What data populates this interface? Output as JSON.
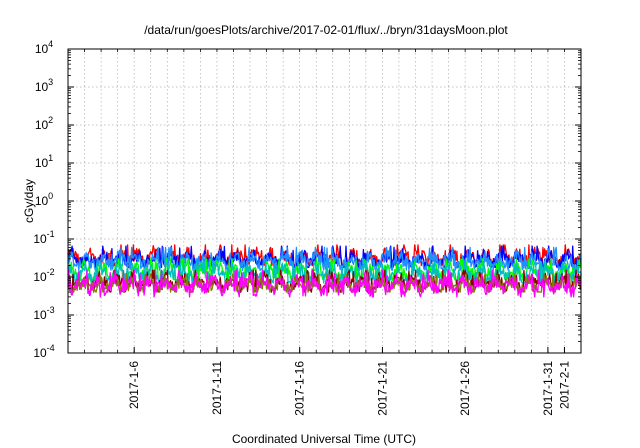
{
  "chart_data": {
    "type": "line",
    "title": "/data/run/goesPlots/archive/2017-02-01/flux/../bryn/31daysMoon.plot",
    "xlabel": "Coordinated Universal Time (UTC)",
    "ylabel": "cGy/day",
    "y_scale": "log",
    "ylim": [
      0.0001,
      10000
    ],
    "xlim": [
      "2017-01-02",
      "2017-02-02"
    ],
    "y_ticks": [
      {
        "base": "10",
        "exp": "-4"
      },
      {
        "base": "10",
        "exp": "-3"
      },
      {
        "base": "10",
        "exp": "-2"
      },
      {
        "base": "10",
        "exp": "-1"
      },
      {
        "base": "10",
        "exp": "0"
      },
      {
        "base": "10",
        "exp": "1"
      },
      {
        "base": "10",
        "exp": "2"
      },
      {
        "base": "10",
        "exp": "3"
      },
      {
        "base": "10",
        "exp": "4"
      }
    ],
    "x_ticks": [
      "2017-1-6",
      "2017-1-11",
      "2017-1-16",
      "2017-1-21",
      "2017-1-26",
      "2017-1-31",
      "2017-2-1"
    ],
    "grid": true,
    "legend": "none",
    "series": [
      {
        "color": "#ff0000",
        "typical": 0.032,
        "low": 0.02,
        "high": 0.07
      },
      {
        "color": "#0000ff",
        "typical": 0.028,
        "low": 0.018,
        "high": 0.065
      },
      {
        "color": "#1e90ff",
        "typical": 0.026,
        "low": 0.015,
        "high": 0.06
      },
      {
        "color": "#00ff00",
        "typical": 0.014,
        "low": 0.008,
        "high": 0.03
      },
      {
        "color": "#00bfbf",
        "typical": 0.012,
        "low": 0.007,
        "high": 0.025
      },
      {
        "color": "#8b0000",
        "typical": 0.007,
        "low": 0.004,
        "high": 0.015
      },
      {
        "color": "#808000",
        "typical": 0.006,
        "low": 0.004,
        "high": 0.012
      },
      {
        "color": "#ff00ff",
        "typical": 0.006,
        "low": 0.003,
        "high": 0.015
      }
    ]
  }
}
